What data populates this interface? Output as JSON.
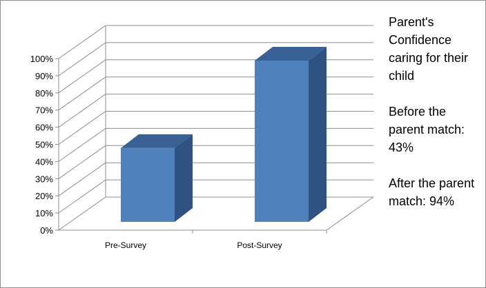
{
  "chart_data": {
    "type": "bar",
    "categories": [
      "Pre-Survey",
      "Post-Survey"
    ],
    "values": [
      43,
      94
    ],
    "title": "",
    "xlabel": "",
    "ylabel": "",
    "ylim": [
      0,
      100
    ],
    "y_ticks": [
      "0%",
      "10%",
      "20%",
      "30%",
      "40%",
      "50%",
      "60%",
      "70%",
      "80%",
      "90%",
      "100%"
    ],
    "grid": true,
    "three_d": true,
    "bar_color": "#4f81bd",
    "bar_top_color": "#3a6194",
    "bar_side_color": "#2f5282",
    "gridline_color": "#8c8c8c"
  },
  "annotation": {
    "title": "Parent's Confidence caring for their child",
    "before": "Before the parent match: 43%",
    "after": "After the parent match: 94%"
  }
}
